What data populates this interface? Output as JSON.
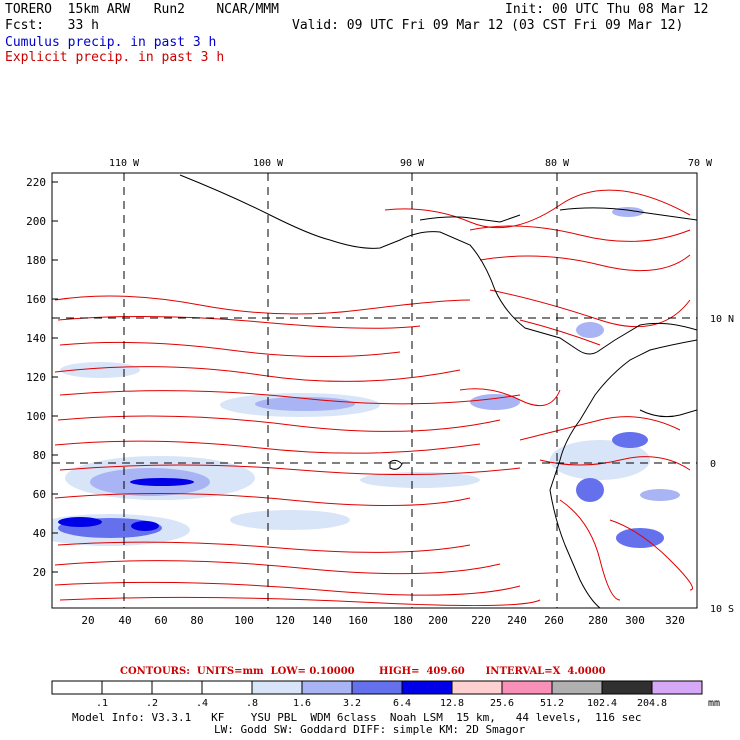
{
  "header": {
    "line1_left": "TORERO  15km ARW   Run2    NCAR/MMM",
    "line1_right": "Init: 00 UTC Thu 08 Mar 12",
    "line2_left": "Fcst:   33 h",
    "line2_right": "Valid: 09 UTC Fri 09 Mar 12 (03 CST Fri 09 Mar 12)",
    "line3": "Cumulus precip. in past 3 h",
    "line4": "Explicit precip. in past 3 h"
  },
  "map": {
    "top_lon_labels": [
      "110 W",
      "100 W",
      "90 W",
      "80 W",
      "70 W"
    ],
    "right_lat_labels": [
      "10 N",
      "0",
      "10 S"
    ],
    "left_y_ticks": [
      "220",
      "200",
      "180",
      "160",
      "140",
      "120",
      "100",
      "80",
      "60",
      "40",
      "20"
    ],
    "bottom_x_ticks": [
      "20",
      "40",
      "60",
      "80",
      "100",
      "120",
      "140",
      "160",
      "180",
      "200",
      "220",
      "240",
      "260",
      "280",
      "300",
      "320"
    ]
  },
  "contours_label": "CONTOURS:  UNITS=mm  LOW= 0.10000       HIGH=  409.60      INTERVAL=X  4.0000",
  "colorbar": {
    "labels": [
      ".1",
      ".2",
      ".4",
      ".8",
      "1.6",
      "3.2",
      "6.4",
      "12.8",
      "25.6",
      "51.2",
      "102.4",
      "204.8"
    ],
    "unit": "mm",
    "colors": [
      "#ffffff",
      "#ffffff",
      "#ffffff",
      "#ffffff",
      "#d8e4f8",
      "#a8b4f4",
      "#6470ec",
      "#0000e8",
      "#ffd0d0",
      "#f890b8",
      "#b0b0b0",
      "#303030",
      "#d8a8f8"
    ]
  },
  "footer": {
    "line1": "Model Info: V3.3.1   KF    YSU PBL  WDM 6class  Noah LSM  15 km,   44 levels,  116 sec",
    "line2": "LW: Godd SW: Goddard DIFF: simple KM: 2D Smagor"
  }
}
